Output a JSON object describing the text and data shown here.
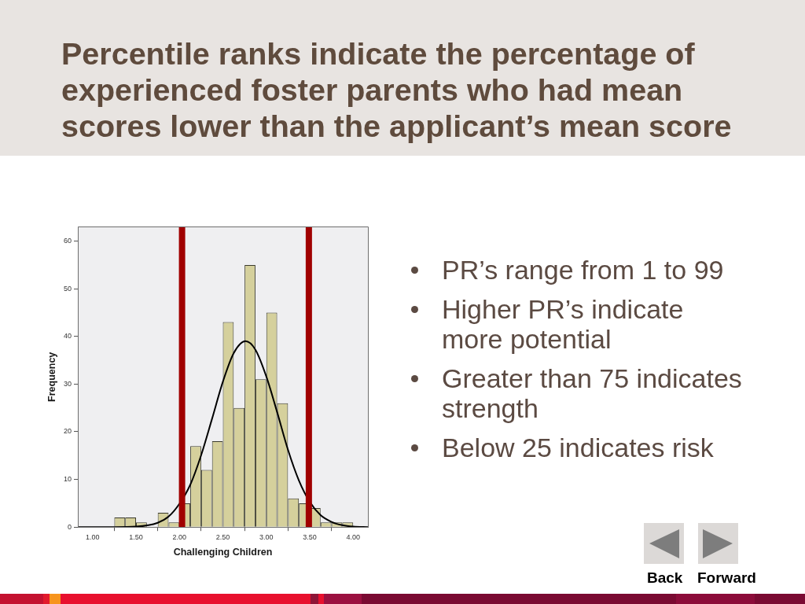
{
  "chart_data": {
    "type": "histogram",
    "title": "Percentile ranks indicate the percentage of experienced foster parents who had mean scores lower than the applicant’s mean score",
    "xlabel": "Challenging Children",
    "ylabel": "Frequency",
    "bins": [
      1.25,
      1.375,
      1.5,
      1.625,
      1.75,
      1.875,
      2.0,
      2.125,
      2.25,
      2.375,
      2.5,
      2.625,
      2.75,
      2.875,
      3.0,
      3.125,
      3.25,
      3.375,
      3.5,
      3.625,
      3.75,
      3.875,
      4.0
    ],
    "series": [
      {
        "color": "#d5d09c",
        "values": [
          2,
          2,
          1,
          0,
          3,
          1,
          5,
          17,
          12,
          18,
          43,
          25,
          55,
          31,
          45,
          26,
          6,
          5,
          4,
          1,
          1,
          1
        ]
      },
      {
        "type": "line",
        "color": "#000000",
        "x": [
          0.83,
          1.0,
          1.25,
          1.5,
          1.75,
          1.875,
          2.0,
          2.125,
          2.25,
          2.375,
          2.5,
          2.625,
          2.76,
          2.875,
          3.0,
          3.125,
          3.25,
          3.375,
          3.5,
          3.625,
          3.75,
          3.875,
          4.0,
          4.17
        ],
        "values": [
          0,
          0,
          0,
          0.1,
          0.9,
          2.2,
          4.9,
          8.9,
          15.1,
          22.7,
          30.5,
          36.5,
          39,
          37.2,
          31.6,
          24.1,
          16.2,
          9.8,
          5.3,
          2.5,
          1.1,
          0.4,
          0.1,
          0
        ]
      }
    ],
    "xlim": [
      0.83,
      4.17
    ],
    "xticks": [
      {
        "value": 1,
        "label": "1.00"
      },
      {
        "value": 1.5,
        "label": "1.50"
      },
      {
        "value": 2,
        "label": "2.00"
      },
      {
        "value": 2.5,
        "label": "2.50"
      },
      {
        "value": 3,
        "label": "3.00"
      },
      {
        "value": 3.5,
        "label": "3.50"
      },
      {
        "value": 4,
        "label": "4.00"
      }
    ],
    "ylim": [
      0,
      63
    ],
    "yticks": [
      0,
      10,
      20,
      30,
      40,
      50,
      60
    ],
    "ref_lines": [
      {
        "axis": "x",
        "value": 2.03,
        "color": "#a00000"
      },
      {
        "axis": "x",
        "value": 3.49,
        "color": "#a00000"
      }
    ],
    "annotations": [
      "PR’s range from 1 to 99",
      "Higher PR’s indicate more potential",
      "Greater than 75 indicates strength",
      "Below 25 indicates risk",
      "Back",
      "Forward"
    ]
  }
}
